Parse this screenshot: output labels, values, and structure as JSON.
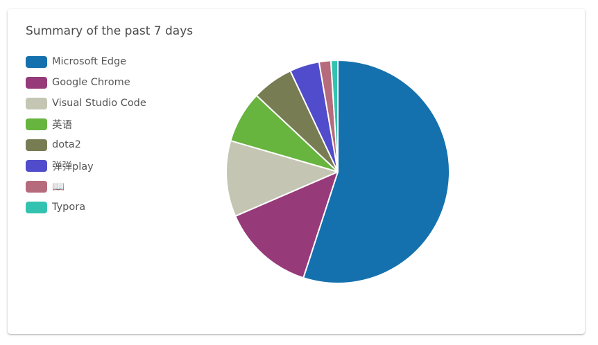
{
  "chart_data": {
    "type": "pie",
    "title": "Summary of the past 7 days",
    "legend_position": "top-left",
    "slices": [
      {
        "label": "Microsoft Edge",
        "value": 55.0,
        "color": "#1471ad"
      },
      {
        "label": "Google Chrome",
        "value": 13.5,
        "color": "#963a79"
      },
      {
        "label": "Visual Studio Code",
        "value": 11.0,
        "color": "#c4c6b3"
      },
      {
        "label": "英语",
        "value": 7.5,
        "color": "#67b43e"
      },
      {
        "label": "dota2",
        "value": 6.0,
        "color": "#787c53"
      },
      {
        "label": "弹弹play",
        "value": 4.3,
        "color": "#514ccb"
      },
      {
        "label": "📖",
        "value": 1.7,
        "color": "#b56b7b"
      },
      {
        "label": "Typora",
        "value": 1.0,
        "color": "#33c2b0"
      }
    ]
  }
}
